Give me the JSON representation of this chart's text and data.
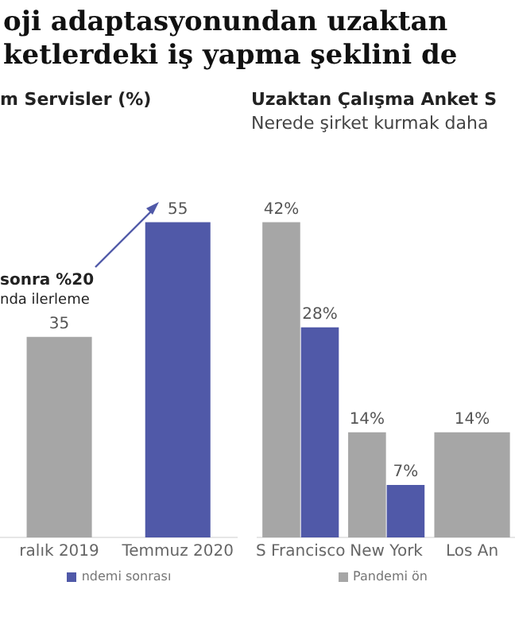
{
  "chart_data": [
    {
      "type": "bar",
      "title": "oji adaptasyonundan uzaktan\nketlerdeki iş yapma şeklini de",
      "subtitle": "m Servisler (%)",
      "categories": [
        "ralık 2019",
        "Temmuz 2020"
      ],
      "series": [
        {
          "color": "#a6a6a6",
          "values": [
            35,
            null
          ]
        },
        {
          "name": "ndemi sonrası",
          "color": "#5059a8",
          "values": [
            null,
            55
          ]
        }
      ],
      "annotations": [
        "sonra %20",
        "nda ilerleme"
      ],
      "data_labels": true,
      "grid": false,
      "legend": "bottom",
      "tick_labels": "x"
    },
    {
      "type": "bar",
      "title": "Uzaktan Çalışma Anket S",
      "subtitle": "Nerede şirket kurmak daha",
      "categories": [
        "S Francisco",
        "New York",
        "Los An"
      ],
      "series": [
        {
          "name": "Pandemi ön",
          "color": "#a6a6a6",
          "values": [
            42,
            14,
            14
          ],
          "value_labels": [
            "42%",
            "14%",
            "14%"
          ]
        },
        {
          "color": "#5059a8",
          "values": [
            28,
            7,
            null
          ],
          "value_labels": [
            "28%",
            "7%",
            null
          ]
        }
      ],
      "grid": false,
      "legend": "bottom",
      "tick_labels": "x"
    }
  ]
}
